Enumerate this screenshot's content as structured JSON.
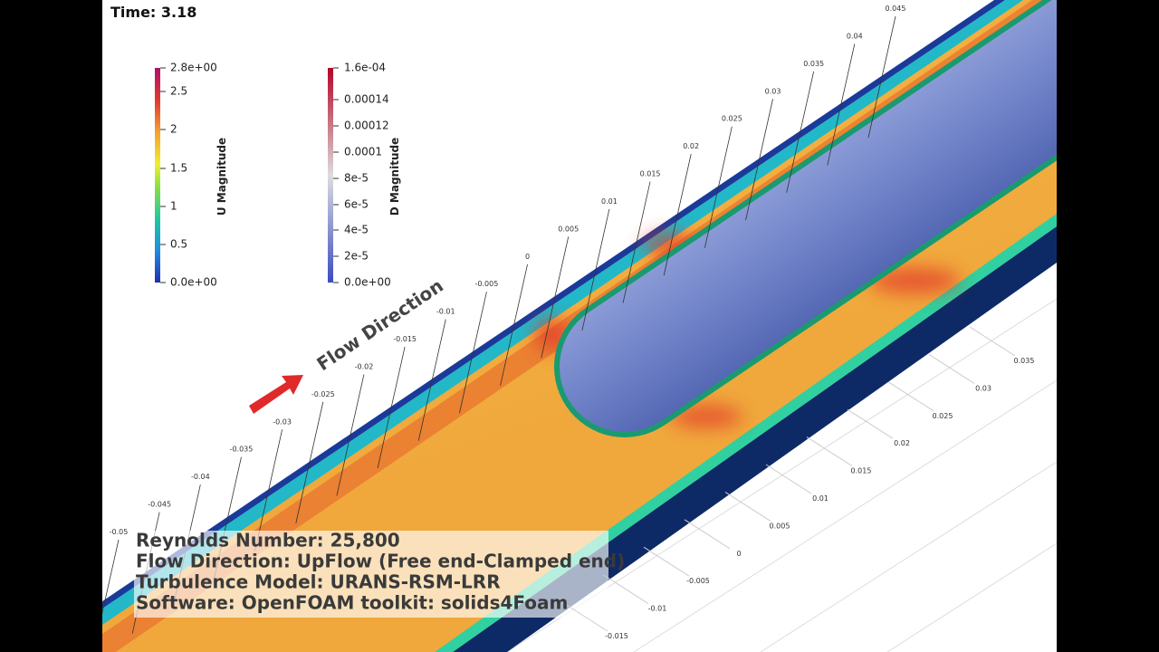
{
  "time_label": "Time: 3.18",
  "colorbars": [
    {
      "title": "U Magnitude",
      "labels": [
        "2.8e+00",
        "2.5",
        "2",
        "1.5",
        "1",
        "0.5",
        "0.0e+00"
      ]
    },
    {
      "title": "D Magnitude",
      "labels": [
        "1.6e-04",
        "0.00014",
        "0.00012",
        "0.0001",
        "8e-5",
        "6e-5",
        "4e-5",
        "2e-5",
        "0.0e+00"
      ]
    }
  ],
  "flow_label": "Flow Direction",
  "axis_top_labels": [
    "-0.05",
    "-0.045",
    "-0.04",
    "-0.035",
    "-0.03",
    "-0.025",
    "-0.02",
    "-0.015",
    "-0.01",
    "-0.005",
    "0",
    "0.005",
    "0.01",
    "0.015",
    "0.02",
    "0.025",
    "0.03",
    "0.035",
    "0.04",
    "0.045"
  ],
  "axis_bottom_labels": [
    "0.035",
    "0.03",
    "0.025",
    "0.02",
    "0.015",
    "0.01",
    "0.005",
    "0",
    "-0.005",
    "-0.01",
    "-0.015"
  ],
  "info_lines": [
    "Reynolds Number: 25,800",
    "Flow Direction: UpFlow (Free end-Clamped end)",
    "Turbulence Model: URANS-RSM-LRR",
    "Software: OpenFOAM toolkit: solids4Foam"
  ]
}
